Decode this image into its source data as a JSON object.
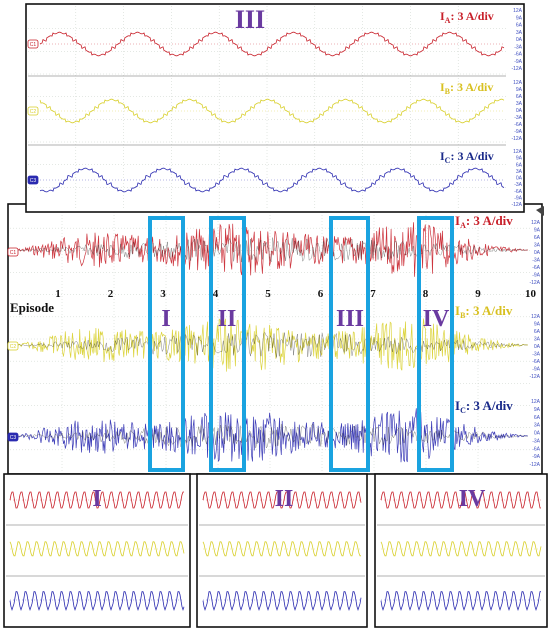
{
  "colors": {
    "phase_a": "#c8202a",
    "phase_b": "#d8cf2a",
    "phase_c": "#2a2ab0",
    "highlight": "#1aa3e0",
    "roman": "#6a3aa0",
    "grid": "#c8d0c8",
    "tick_text": "#4050c0"
  },
  "top_panel": {
    "roman": "III",
    "labels": [
      "I",
      "A",
      ": 3 A/div",
      "I",
      "B",
      ": 3 A/div",
      "I",
      "C",
      ": 3 A/div"
    ]
  },
  "main_panel": {
    "labels": [
      "I",
      "A",
      ": 3 A/div",
      "I",
      "B",
      ": 3 A/div",
      "I",
      "C",
      ": 3 A/div"
    ],
    "episode_label": "Episode",
    "episodes": [
      "1",
      "2",
      "3",
      "4",
      "5",
      "6",
      "7",
      "8",
      "9",
      "10"
    ],
    "highlight_romans": [
      "I",
      "II",
      "III",
      "IV"
    ]
  },
  "bottom_panels": [
    {
      "roman": "I"
    },
    {
      "roman": "II"
    },
    {
      "roman": "IV"
    }
  ],
  "channel_markers": [
    "C1",
    "C2",
    "C3"
  ],
  "scale_ticks": [
    "12A",
    "9A",
    "6A",
    "3A",
    "0A",
    "-3A",
    "-6A",
    "-9A",
    "-12A"
  ]
}
